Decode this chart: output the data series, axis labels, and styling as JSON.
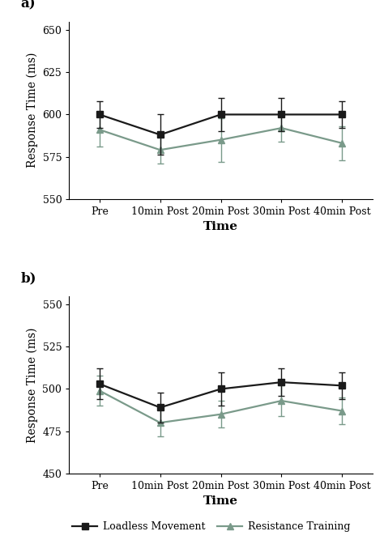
{
  "x_labels": [
    "Pre",
    "10min Post",
    "20min Post",
    "30min Post",
    "40min Post"
  ],
  "x_positions": [
    0,
    1,
    2,
    3,
    4
  ],
  "panel_a": {
    "loadless_y": [
      600,
      588,
      600,
      600,
      600
    ],
    "loadless_err": [
      8,
      12,
      10,
      10,
      8
    ],
    "resistance_y": [
      591,
      579,
      585,
      592,
      583
    ],
    "resistance_err": [
      10,
      8,
      13,
      8,
      10
    ],
    "ylim": [
      550,
      655
    ],
    "yticks": [
      550,
      575,
      600,
      625,
      650
    ],
    "ylabel": "Response Time (ms)",
    "panel_label": "a)"
  },
  "panel_b": {
    "loadless_y": [
      503,
      489,
      500,
      504,
      502
    ],
    "loadless_err": [
      9,
      9,
      10,
      8,
      8
    ],
    "resistance_y": [
      499,
      480,
      485,
      493,
      487
    ],
    "resistance_err": [
      9,
      8,
      8,
      9,
      8
    ],
    "ylim": [
      450,
      555
    ],
    "yticks": [
      450,
      475,
      500,
      525,
      550
    ],
    "ylabel": "Response Time (ms)",
    "panel_label": "b)"
  },
  "xlabel": "Time",
  "loadless_color": "#1a1a1a",
  "resistance_color": "#7a9a8a",
  "loadless_label": "Loadless Movement",
  "resistance_label": "Resistance Training",
  "marker_loadless": "s",
  "marker_resistance": "^",
  "linewidth": 1.6,
  "markersize": 6,
  "capsize": 3,
  "elinewidth": 1.0,
  "font_family": "serif",
  "tick_fontsize": 9,
  "label_fontsize": 10,
  "xlabel_fontsize": 11,
  "legend_fontsize": 9
}
